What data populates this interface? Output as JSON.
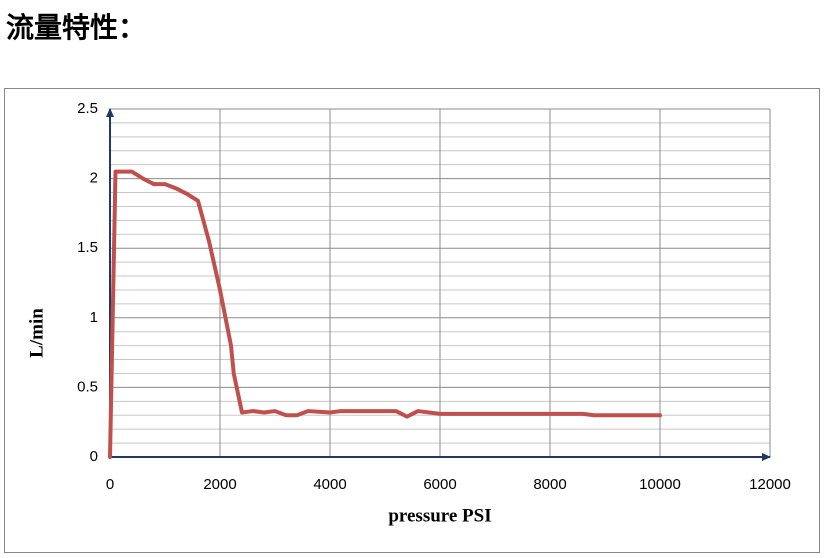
{
  "heading": "流量特性：",
  "chart_data": {
    "type": "line",
    "x_label": "pressure PSI",
    "y_label": "L/min",
    "xlim": [
      0,
      12000
    ],
    "xticks": [
      0,
      2000,
      4000,
      6000,
      8000,
      10000,
      12000
    ],
    "ylim": [
      0,
      2.5
    ],
    "yticks": [
      0,
      0.5,
      1,
      1.5,
      2,
      2.5
    ],
    "minor_yticks": [
      0.1,
      0.2,
      0.3,
      0.4,
      0.6,
      0.7,
      0.8,
      0.9,
      1.1,
      1.2,
      1.3,
      1.4,
      1.6,
      1.7,
      1.8,
      1.9,
      2.1,
      2.2,
      2.3,
      2.4
    ],
    "grid": true,
    "series": [
      {
        "color": "#c0504d",
        "x": [
          0,
          100,
          200,
          400,
          600,
          800,
          1000,
          1200,
          1400,
          1600,
          1800,
          2000,
          2200,
          2250,
          2400,
          2600,
          2800,
          3000,
          3200,
          3400,
          3600,
          4000,
          4200,
          5000,
          5200,
          5400,
          5600,
          6000,
          7000,
          8000,
          8600,
          8800,
          10000
        ],
        "values": [
          0,
          2.05,
          2.05,
          2.05,
          2.0,
          1.96,
          1.96,
          1.93,
          1.89,
          1.84,
          1.55,
          1.2,
          0.8,
          0.6,
          0.32,
          0.33,
          0.32,
          0.33,
          0.3,
          0.3,
          0.33,
          0.32,
          0.33,
          0.33,
          0.33,
          0.29,
          0.33,
          0.31,
          0.31,
          0.31,
          0.31,
          0.3,
          0.3
        ]
      }
    ]
  }
}
